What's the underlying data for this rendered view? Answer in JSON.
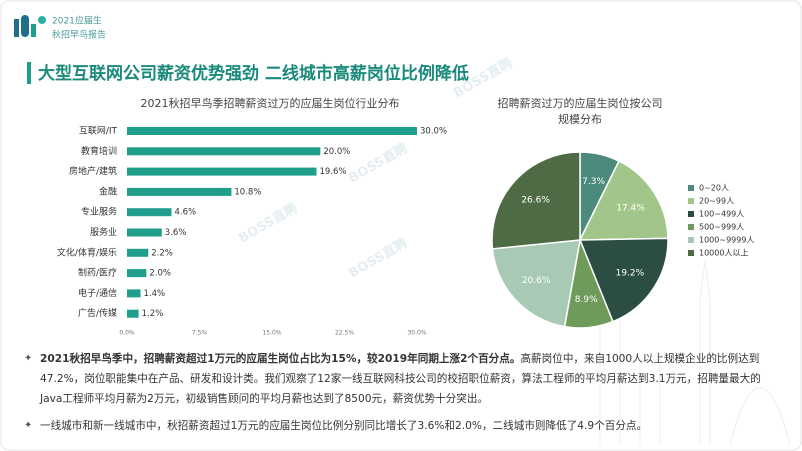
{
  "header": {
    "line1": "2021应届生",
    "line2": "秋招早鸟报告"
  },
  "title": "大型互联网公司薪资优势强劲 二线城市高薪岗位比例降低",
  "watermark": "BOSS直聘",
  "chart_data": [
    {
      "type": "hbar",
      "title": "2021秋招早鸟季招聘薪资过万的应届生岗位行业分布",
      "categories": [
        "互联网/IT",
        "教育培训",
        "房地产/建筑",
        "金融",
        "专业服务",
        "服务业",
        "文化/体育/娱乐",
        "制药/医疗",
        "电子/通信",
        "广告/传媒"
      ],
      "values": [
        30.0,
        20.0,
        19.6,
        10.8,
        4.6,
        3.6,
        2.2,
        2.0,
        1.4,
        1.2
      ],
      "value_labels": [
        "30.0%",
        "20.0%",
        "19.6%",
        "10.8%",
        "4.6%",
        "3.6%",
        "2.2%",
        "2.0%",
        "1.4%",
        "1.2%"
      ],
      "color": "#1f9e8c",
      "xlim": [
        0,
        30
      ],
      "xticks": [
        {
          "value": 0,
          "label": "0.0%"
        },
        {
          "value": 7.5,
          "label": "7.5%"
        },
        {
          "value": 15,
          "label": "15.0%"
        },
        {
          "value": 22.5,
          "label": "22.5%"
        },
        {
          "value": 30,
          "label": "30.0%"
        }
      ]
    },
    {
      "type": "pie",
      "title": [
        "招聘薪资过万的应届生岗位按公司",
        "规模分布"
      ],
      "categories": [
        "0~20人",
        "20~99人",
        "100~499人",
        "500~999人",
        "1000~9999人",
        "10000人以上"
      ],
      "values": [
        7.3,
        17.4,
        19.2,
        8.9,
        20.6,
        26.6
      ],
      "value_labels": [
        "7.3%",
        "17.4%",
        "19.2%",
        "8.9%",
        "20.6%",
        "26.6%"
      ],
      "colors": [
        "#4b8a7c",
        "#a2c68a",
        "#2c4d44",
        "#6e9a5a",
        "#a8c9b3",
        "#4e6b46"
      ],
      "legend": "right"
    }
  ],
  "bullets": [
    {
      "bold": "2021秋招早鸟季中，招聘薪资超过1万元的应届生岗位占比为15%，较2019年同期上涨2个百分点。",
      "text": "高薪岗位中，来自1000人以上规模企业的比例达到47.2%，岗位职能集中在产品、研发和设计类。我们观察了12家一线互联网科技公司的校招职位薪资，算法工程师的平均月薪达到3.1万元，招聘量最大的Java工程师平均月薪为2万元，初级销售顾问的平均月薪也达到了8500元，薪资优势十分突出。"
    },
    {
      "bold": "",
      "text": "一线城市和新一线城市中，秋招薪资超过1万元的应届生岗位比例分别同比增长了3.6%和2.0%，二线城市则降低了4.9个百分点。"
    }
  ]
}
